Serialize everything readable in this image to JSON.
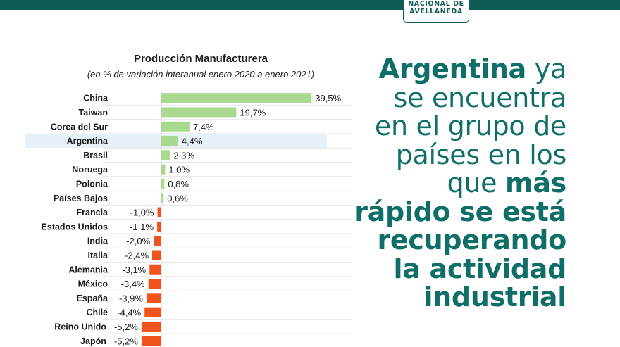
{
  "logo": {
    "line1": "NACIONAL DE",
    "line2": "AVELLANEDA"
  },
  "colors": {
    "brand": "#0f6f68",
    "positive": "#a9d98f",
    "negative": "#f0531c",
    "highlight": "#e6f1f8"
  },
  "headline": {
    "line1_bold": "Argentina",
    "line1_rest": " ya",
    "line2": "se encuentra",
    "line3": "en el grupo de",
    "line4": "países en los",
    "line5_plain": "que ",
    "line5_bold": "más",
    "line6": "rápido se está",
    "line7": "recuperando",
    "line8": "la actividad",
    "line9": "industrial"
  },
  "chart_data": {
    "type": "bar",
    "orientation": "horizontal",
    "title": "Producción Manufacturera",
    "subtitle": "(en % de variación interanual enero 2020 a enero 2021)",
    "highlight_category": "Argentina",
    "categories": [
      "China",
      "Taiwan",
      "Corea del Sur",
      "Argentina",
      "Brasil",
      "Noruega",
      "Polonia",
      "Países Bajos",
      "Francia",
      "Estados Unidos",
      "India",
      "Italia",
      "Alemania",
      "México",
      "España",
      "Chile",
      "Reino Unido",
      "Japón"
    ],
    "values": [
      39.5,
      19.7,
      7.4,
      4.4,
      2.3,
      1.0,
      0.8,
      0.6,
      -1.0,
      -1.1,
      -2.0,
      -2.4,
      -3.1,
      -3.4,
      -3.9,
      -4.4,
      -5.2,
      -5.2
    ],
    "labels": [
      "39,5%",
      "19,7%",
      "7,4%",
      "4,4%",
      "2,3%",
      "1,0%",
      "0,8%",
      "0,6%",
      "-1,0%",
      "-1,1%",
      "-2,0%",
      "-2,4%",
      "-3,1%",
      "-3,4%",
      "-3,9%",
      "-4,4%",
      "-5,2%",
      "-5,2%"
    ],
    "grid": true
  }
}
